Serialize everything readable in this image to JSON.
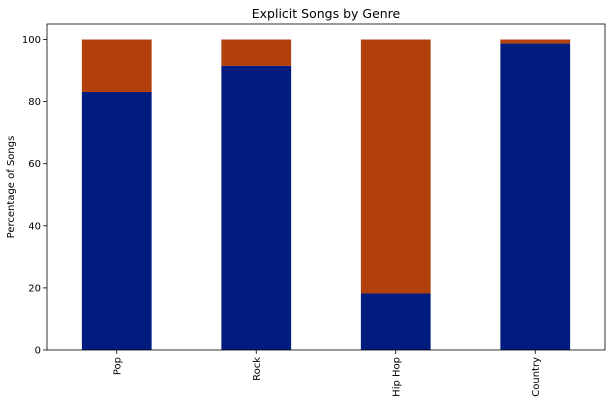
{
  "chart_data": {
    "type": "bar",
    "stacked": true,
    "title": "Explicit Songs by Genre",
    "xlabel": "",
    "ylabel": "Percentage of Songs",
    "categories": [
      "Pop",
      "Rock",
      "Hip Hop",
      "Country"
    ],
    "series": [
      {
        "values": [
          83.1,
          91.5,
          18.2,
          98.7
        ],
        "color": "#001c7f"
      },
      {
        "values": [
          16.9,
          8.5,
          81.8,
          1.3
        ],
        "color": "#b1400d"
      }
    ],
    "ylim": [
      0,
      105
    ],
    "yticks": [
      0,
      20,
      40,
      60,
      80,
      100
    ],
    "grid": false,
    "legend": false,
    "x_tick_rotation": 90
  }
}
